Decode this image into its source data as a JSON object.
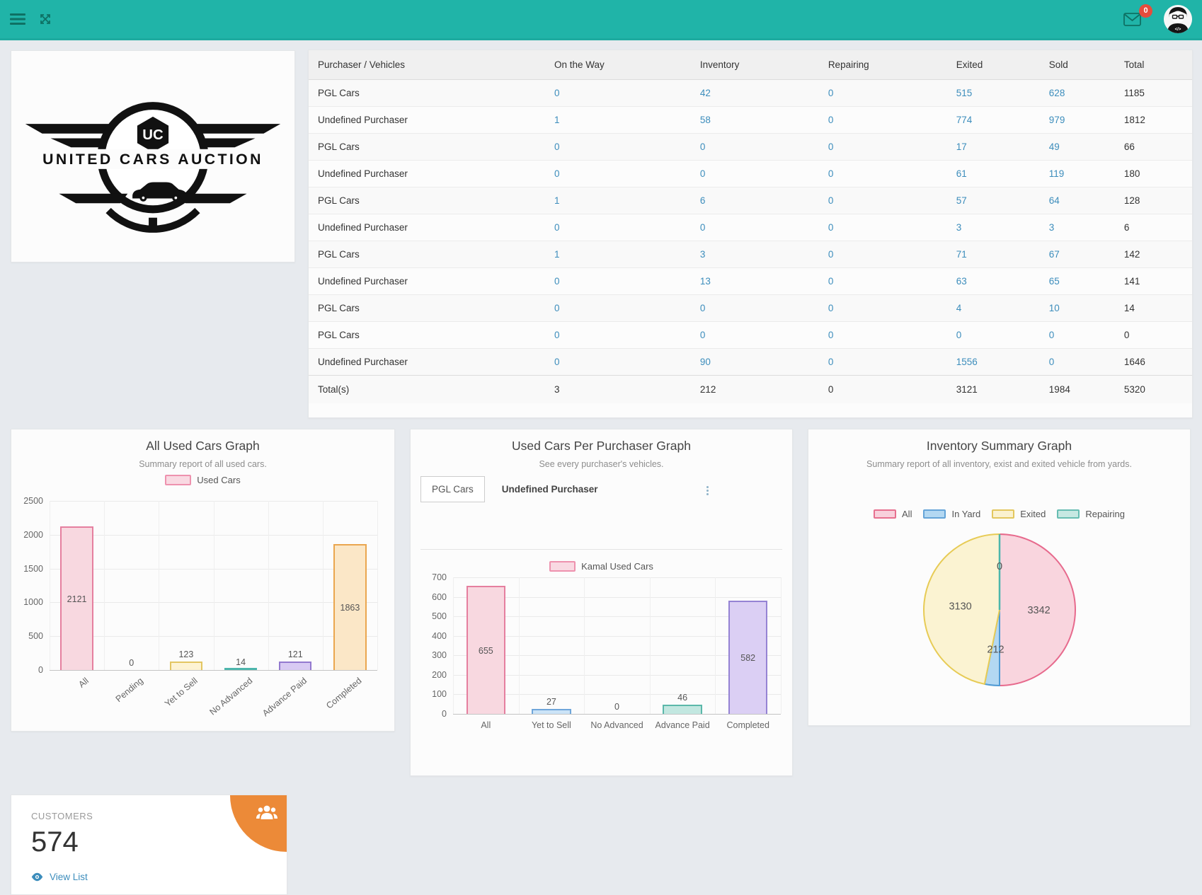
{
  "header": {
    "mail_badge": "0"
  },
  "logo": {
    "text": "UNITED CARS AUCTION",
    "monogram": "UC"
  },
  "table": {
    "headers": [
      "Purchaser / Vehicles",
      "On the Way",
      "Inventory",
      "Repairing",
      "Exited",
      "Sold",
      "Total"
    ],
    "rows": [
      {
        "name": "PGL Cars",
        "values": [
          "0",
          "42",
          "0",
          "515",
          "628"
        ],
        "total": "1185"
      },
      {
        "name": "Undefined Purchaser",
        "values": [
          "1",
          "58",
          "0",
          "774",
          "979"
        ],
        "total": "1812"
      },
      {
        "name": "PGL Cars",
        "values": [
          "0",
          "0",
          "0",
          "17",
          "49"
        ],
        "total": "66"
      },
      {
        "name": "Undefined Purchaser",
        "values": [
          "0",
          "0",
          "0",
          "61",
          "119"
        ],
        "total": "180"
      },
      {
        "name": "PGL Cars",
        "values": [
          "1",
          "6",
          "0",
          "57",
          "64"
        ],
        "total": "128"
      },
      {
        "name": "Undefined Purchaser",
        "values": [
          "0",
          "0",
          "0",
          "3",
          "3"
        ],
        "total": "6"
      },
      {
        "name": "PGL Cars",
        "values": [
          "1",
          "3",
          "0",
          "71",
          "67"
        ],
        "total": "142"
      },
      {
        "name": "Undefined Purchaser",
        "values": [
          "0",
          "13",
          "0",
          "63",
          "65"
        ],
        "total": "141"
      },
      {
        "name": "PGL Cars",
        "values": [
          "0",
          "0",
          "0",
          "4",
          "10"
        ],
        "total": "14"
      },
      {
        "name": "PGL Cars",
        "values": [
          "0",
          "0",
          "0",
          "0",
          "0"
        ],
        "total": "0"
      },
      {
        "name": "Undefined Purchaser",
        "values": [
          "0",
          "90",
          "0",
          "1556",
          "0"
        ],
        "total": "1646"
      }
    ],
    "total_row": {
      "name": "Total(s)",
      "values": [
        "3",
        "212",
        "0",
        "3121",
        "1984"
      ],
      "total": "5320"
    }
  },
  "chart_data": [
    {
      "type": "bar",
      "title": "All Used Cars Graph",
      "subtitle": "Summary report of all used cars.",
      "legend": [
        {
          "label": "Used Cars",
          "fill": "#f9d9e2",
          "stroke": "#ee92ae"
        }
      ],
      "categories": [
        "All",
        "Pending",
        "Yet to Sell",
        "No Advanced",
        "Advance Paid",
        "Completed"
      ],
      "values": [
        2121,
        0,
        123,
        14,
        121,
        1863
      ],
      "fills": [
        "#f8d8e0",
        "#f8d8e0",
        "#fdf3d3",
        "#a5dbd2",
        "#d8caf3",
        "#fbe7c7"
      ],
      "strokes": [
        "#e57f9f",
        "#e57f9f",
        "#e3c662",
        "#4db6ac",
        "#9379cf",
        "#eaa64f"
      ],
      "ylim": [
        0,
        2500
      ],
      "ytick_step": 500,
      "rotate_labels": true,
      "grid": true,
      "legend_position": "top",
      "xlabel": "",
      "ylabel": ""
    },
    {
      "type": "bar",
      "title": "Used Cars Per Purchaser Graph",
      "subtitle": "See every purchaser's vehicles.",
      "tabs": [
        {
          "label": "PGL Cars",
          "active": true
        },
        {
          "label": "Undefined Purchaser",
          "active": false
        }
      ],
      "legend": [
        {
          "label": "Kamal Used Cars",
          "fill": "#f9d9e2",
          "stroke": "#ee92ae"
        }
      ],
      "categories": [
        "All",
        "Yet to Sell",
        "No Advanced",
        "Advance Paid",
        "Completed"
      ],
      "values": [
        655,
        27,
        0,
        46,
        582
      ],
      "fills": [
        "#f8d8e0",
        "#cbe3f7",
        "#cbe3f7",
        "#c2e7e0",
        "#dbcff4"
      ],
      "strokes": [
        "#e57f9f",
        "#6fa6da",
        "#6fa6da",
        "#5bb8aa",
        "#9583d4"
      ],
      "ylim": [
        0,
        700
      ],
      "ytick_step": 100,
      "rotate_labels": false,
      "grid": true,
      "legend_position": "top",
      "xlabel": "",
      "ylabel": ""
    },
    {
      "type": "pie",
      "title": "Inventory Summary Graph",
      "subtitle": "Summary report of all inventory, exist and exited vehicle from yards.",
      "legend": [
        {
          "label": "All",
          "fill": "#f8d0dc",
          "stroke": "#e7708f"
        },
        {
          "label": "In Yard",
          "fill": "#b3d8f2",
          "stroke": "#64a4d8"
        },
        {
          "label": "Exited",
          "fill": "#faf2cf",
          "stroke": "#e3c75e"
        },
        {
          "label": "Repairing",
          "fill": "#c6e8e2",
          "stroke": "#67bdb2"
        }
      ],
      "slices": [
        {
          "label": "All",
          "value": 3342,
          "fill": "#f9d5de",
          "stroke": "#e76a8d"
        },
        {
          "label": "In Yard",
          "value": 212,
          "fill": "#b3d8f2",
          "stroke": "#4f9ad4"
        },
        {
          "label": "Exited",
          "value": 3130,
          "fill": "#fbf3d2",
          "stroke": "#e7cb55"
        },
        {
          "label": "Repairing",
          "value": 0,
          "fill": "#c6e8e2",
          "stroke": "#4db6ac"
        }
      ],
      "legend_position": "top"
    }
  ],
  "customers": {
    "label": "CUSTOMERS",
    "count": "574",
    "link_label": "View List"
  }
}
